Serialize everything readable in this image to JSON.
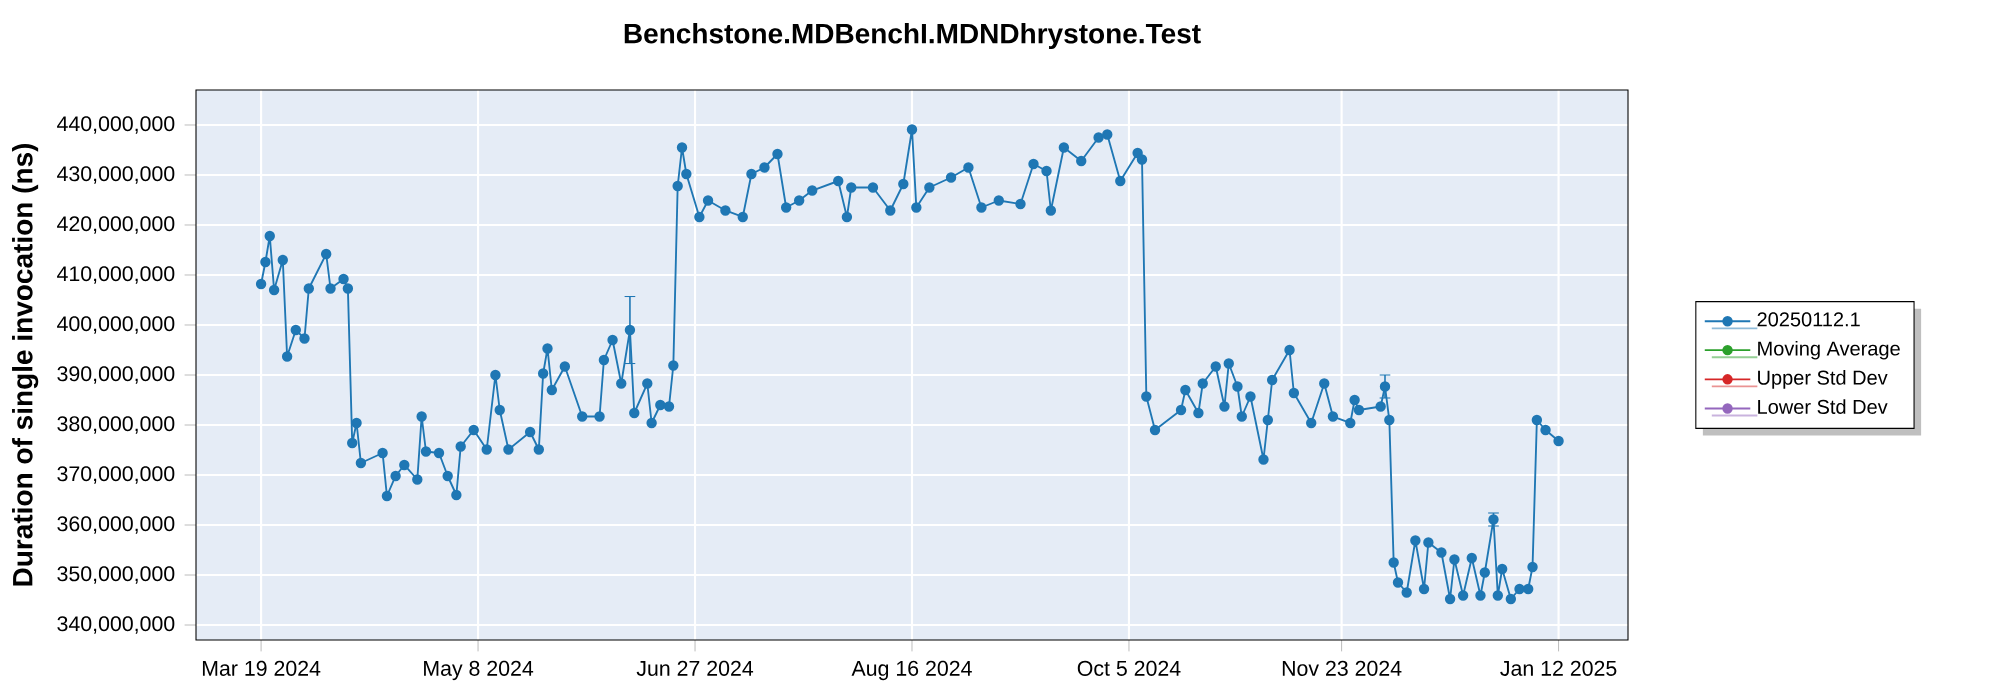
{
  "chart_data": {
    "type": "line",
    "title": "Benchstone.MDBenchI.MDNDhrystone.Test",
    "ylabel": "Duration of single invocation (ns)",
    "x": [
      "2024-03-19",
      "2024-03-20",
      "2024-03-21",
      "2024-03-22",
      "2024-03-24",
      "2024-03-25",
      "2024-03-27",
      "2024-03-29",
      "2024-03-30",
      "2024-04-03",
      "2024-04-04",
      "2024-04-07",
      "2024-04-08",
      "2024-04-09",
      "2024-04-10",
      "2024-04-11",
      "2024-04-16",
      "2024-04-17",
      "2024-04-19",
      "2024-04-21",
      "2024-04-24",
      "2024-04-25",
      "2024-04-26",
      "2024-04-29",
      "2024-05-01",
      "2024-05-03",
      "2024-05-04",
      "2024-05-07",
      "2024-05-10",
      "2024-05-12",
      "2024-05-13",
      "2024-05-15",
      "2024-05-20",
      "2024-05-22",
      "2024-05-23",
      "2024-05-24",
      "2024-05-25",
      "2024-05-28",
      "2024-06-01",
      "2024-06-05",
      "2024-06-06",
      "2024-06-08",
      "2024-06-10",
      "2024-06-12",
      "2024-06-13",
      "2024-06-16",
      "2024-06-17",
      "2024-06-19",
      "2024-06-21",
      "2024-06-22",
      "2024-06-23",
      "2024-06-24",
      "2024-06-25",
      "2024-06-28",
      "2024-06-30",
      "2024-07-04",
      "2024-07-08",
      "2024-07-10",
      "2024-07-13",
      "2024-07-16",
      "2024-07-18",
      "2024-07-21",
      "2024-07-24",
      "2024-07-30",
      "2024-08-01",
      "2024-08-02",
      "2024-08-07",
      "2024-08-11",
      "2024-08-14",
      "2024-08-16",
      "2024-08-17",
      "2024-08-20",
      "2024-08-25",
      "2024-08-29",
      "2024-09-01",
      "2024-09-05",
      "2024-09-10",
      "2024-09-13",
      "2024-09-16",
      "2024-09-17",
      "2024-09-20",
      "2024-09-24",
      "2024-09-28",
      "2024-09-30",
      "2024-10-03",
      "2024-10-07",
      "2024-10-08",
      "2024-10-09",
      "2024-10-11",
      "2024-10-17",
      "2024-10-18",
      "2024-10-21",
      "2024-10-22",
      "2024-10-25",
      "2024-10-27",
      "2024-10-28",
      "2024-10-30",
      "2024-10-31",
      "2024-11-02",
      "2024-11-05",
      "2024-11-06",
      "2024-11-07",
      "2024-11-11",
      "2024-11-12",
      "2024-11-16",
      "2024-11-19",
      "2024-11-21",
      "2024-11-25",
      "2024-11-26",
      "2024-11-27",
      "2024-12-02",
      "2024-12-03",
      "2024-12-04",
      "2024-12-05",
      "2024-12-06",
      "2024-12-08",
      "2024-12-10",
      "2024-12-12",
      "2024-12-13",
      "2024-12-16",
      "2024-12-18",
      "2024-12-19",
      "2024-12-21",
      "2024-12-23",
      "2024-12-25",
      "2024-12-26",
      "2024-12-28",
      "2024-12-29",
      "2024-12-30",
      "2025-01-01",
      "2025-01-03",
      "2025-01-05",
      "2025-01-06",
      "2025-01-07",
      "2025-01-09",
      "2025-01-12"
    ],
    "series": [
      {
        "name": "20250112.1",
        "color": "#1f77b4",
        "values": [
          408200000,
          412600000,
          417800000,
          407000000,
          413000000,
          393700000,
          399000000,
          397300000,
          407300000,
          414200000,
          407300000,
          409200000,
          407300000,
          376400000,
          380400000,
          372400000,
          374400000,
          365800000,
          369800000,
          372000000,
          369100000,
          381700000,
          374700000,
          374400000,
          369800000,
          366000000,
          375700000,
          379000000,
          375100000,
          390000000,
          383000000,
          375100000,
          378600000,
          375100000,
          390300000,
          395300000,
          387000000,
          391700000,
          381700000,
          381700000,
          393000000,
          397000000,
          388300000,
          399000000,
          382400000,
          388300000,
          380400000,
          384000000,
          383700000,
          391900000,
          427800000,
          435500000,
          430200000,
          421600000,
          424900000,
          422900000,
          421600000,
          430200000,
          431500000,
          434200000,
          423500000,
          424900000,
          426900000,
          428800000,
          421600000,
          427500000,
          427500000,
          422900000,
          428200000,
          439100000,
          423500000,
          427500000,
          429500000,
          431500000,
          423500000,
          424900000,
          424200000,
          432200000,
          430800000,
          422900000,
          435500000,
          432800000,
          437500000,
          438100000,
          428800000,
          434400000,
          433100000,
          385700000,
          379000000,
          383000000,
          387000000,
          382400000,
          388300000,
          391700000,
          383700000,
          392300000,
          387700000,
          381700000,
          385700000,
          373100000,
          381000000,
          389000000,
          395000000,
          386400000,
          380400000,
          388300000,
          381700000,
          380400000,
          385000000,
          383000000,
          383700000,
          387700000,
          381000000,
          352500000,
          348500000,
          346500000,
          356900000,
          347200000,
          356500000,
          354500000,
          345200000,
          353100000,
          345900000,
          353400000,
          345900000,
          350500000,
          361100000,
          345900000,
          351200000,
          345200000,
          347200000,
          347200000,
          351600000,
          381000000,
          379000000,
          376800000
        ],
        "errors": [
          null,
          null,
          null,
          null,
          null,
          null,
          null,
          null,
          null,
          null,
          null,
          null,
          null,
          null,
          null,
          null,
          null,
          null,
          null,
          null,
          null,
          null,
          null,
          null,
          null,
          null,
          null,
          null,
          null,
          null,
          null,
          null,
          null,
          null,
          null,
          null,
          null,
          null,
          null,
          null,
          null,
          null,
          null,
          6700000,
          null,
          null,
          null,
          null,
          null,
          null,
          null,
          null,
          null,
          null,
          null,
          null,
          null,
          null,
          null,
          null,
          null,
          null,
          null,
          null,
          null,
          null,
          null,
          null,
          null,
          null,
          null,
          null,
          null,
          null,
          null,
          null,
          null,
          null,
          null,
          null,
          null,
          null,
          null,
          null,
          null,
          null,
          null,
          null,
          null,
          null,
          null,
          null,
          null,
          null,
          null,
          null,
          null,
          null,
          null,
          null,
          null,
          null,
          null,
          null,
          null,
          null,
          null,
          null,
          null,
          null,
          null,
          2300000,
          null,
          null,
          null,
          null,
          null,
          null,
          null,
          null,
          null,
          null,
          null,
          null,
          null,
          null,
          1300000,
          null,
          null,
          null,
          null,
          null,
          null,
          null,
          null,
          null
        ]
      },
      {
        "name": "Moving Average",
        "color": "#2ca02c",
        "values": [
          null,
          null,
          null,
          null,
          null,
          null,
          null,
          null,
          null,
          null,
          null,
          null,
          null,
          null,
          null,
          null,
          null,
          null,
          null,
          null,
          null,
          null,
          null,
          null,
          null,
          null,
          null,
          null,
          null,
          null,
          null,
          null,
          null,
          null,
          null,
          null,
          null,
          null,
          null,
          null,
          null,
          null,
          null,
          null,
          null,
          null,
          null,
          null,
          null,
          null,
          null,
          null,
          null,
          null,
          null,
          null,
          null,
          null,
          null,
          null,
          null,
          null,
          null,
          null,
          null,
          null,
          null,
          null,
          null,
          null,
          null,
          null,
          null,
          null,
          null,
          null,
          null,
          null,
          null,
          null,
          null,
          null,
          null,
          null,
          null,
          null,
          null,
          null,
          null,
          null,
          null,
          null,
          null,
          null,
          null,
          null,
          null,
          null,
          null,
          null,
          null,
          null,
          null,
          null,
          null,
          null,
          null,
          null,
          null,
          null,
          null,
          null,
          null,
          null,
          null,
          null,
          null,
          null,
          null,
          null,
          null,
          null,
          null,
          null,
          null,
          null,
          null,
          null,
          null,
          null,
          null,
          null,
          null,
          null,
          null,
          null
        ]
      },
      {
        "name": "Upper Std Dev",
        "color": "#d62728",
        "values": [
          null,
          null,
          null,
          null,
          null,
          null,
          null,
          null,
          null,
          null,
          null,
          null,
          null,
          null,
          null,
          null,
          null,
          null,
          null,
          null,
          null,
          null,
          null,
          null,
          null,
          null,
          null,
          null,
          null,
          null,
          null,
          null,
          null,
          null,
          null,
          null,
          null,
          null,
          null,
          null,
          null,
          null,
          null,
          null,
          null,
          null,
          null,
          null,
          null,
          null,
          null,
          null,
          null,
          null,
          null,
          null,
          null,
          null,
          null,
          null,
          null,
          null,
          null,
          null,
          null,
          null,
          null,
          null,
          null,
          null,
          null,
          null,
          null,
          null,
          null,
          null,
          null,
          null,
          null,
          null,
          null,
          null,
          null,
          null,
          null,
          null,
          null,
          null,
          null,
          null,
          null,
          null,
          null,
          null,
          null,
          null,
          null,
          null,
          null,
          null,
          null,
          null,
          null,
          null,
          null,
          null,
          null,
          null,
          null,
          null,
          null,
          null,
          null,
          null,
          null,
          null,
          null,
          null,
          null,
          null,
          null,
          null,
          null,
          null,
          null,
          null,
          null,
          null,
          null,
          null,
          null,
          null,
          null,
          null,
          null,
          null
        ]
      },
      {
        "name": "Lower Std Dev",
        "color": "#9467bd",
        "values": [
          null,
          null,
          null,
          null,
          null,
          null,
          null,
          null,
          null,
          null,
          null,
          null,
          null,
          null,
          null,
          null,
          null,
          null,
          null,
          null,
          null,
          null,
          null,
          null,
          null,
          null,
          null,
          null,
          null,
          null,
          null,
          null,
          null,
          null,
          null,
          null,
          null,
          null,
          null,
          null,
          null,
          null,
          null,
          null,
          null,
          null,
          null,
          null,
          null,
          null,
          null,
          null,
          null,
          null,
          null,
          null,
          null,
          null,
          null,
          null,
          null,
          null,
          null,
          null,
          null,
          null,
          null,
          null,
          null,
          null,
          null,
          null,
          null,
          null,
          null,
          null,
          null,
          null,
          null,
          null,
          null,
          null,
          null,
          null,
          null,
          null,
          null,
          null,
          null,
          null,
          null,
          null,
          null,
          null,
          null,
          null,
          null,
          null,
          null,
          null,
          null,
          null,
          null,
          null,
          null,
          null,
          null,
          null,
          null,
          null,
          null,
          null,
          null,
          null,
          null,
          null,
          null,
          null,
          null,
          null,
          null,
          null,
          null,
          null,
          null,
          null,
          null,
          null,
          null,
          null,
          null,
          null,
          null,
          null,
          null,
          null
        ]
      }
    ],
    "xlim": [
      "2024-03-04",
      "2025-01-28"
    ],
    "xticks": [
      {
        "value": "2024-03-19",
        "label": "Mar 19 2024"
      },
      {
        "value": "2024-05-08",
        "label": "May 8 2024"
      },
      {
        "value": "2024-06-27",
        "label": "Jun 27 2024"
      },
      {
        "value": "2024-08-16",
        "label": "Aug 16 2024"
      },
      {
        "value": "2024-10-05",
        "label": "Oct 5 2024"
      },
      {
        "value": "2024-11-23",
        "label": "Nov 23 2024"
      },
      {
        "value": "2025-01-12",
        "label": "Jan 12 2025"
      }
    ],
    "ylim": [
      337000000,
      447000000
    ],
    "yticks": [
      {
        "value": 340000000,
        "label": "340,000,000"
      },
      {
        "value": 350000000,
        "label": "350,000,000"
      },
      {
        "value": 360000000,
        "label": "360,000,000"
      },
      {
        "value": 370000000,
        "label": "370,000,000"
      },
      {
        "value": 380000000,
        "label": "380,000,000"
      },
      {
        "value": 390000000,
        "label": "390,000,000"
      },
      {
        "value": 400000000,
        "label": "400,000,000"
      },
      {
        "value": 410000000,
        "label": "410,000,000"
      },
      {
        "value": 420000000,
        "label": "420,000,000"
      },
      {
        "value": 430000000,
        "label": "430,000,000"
      },
      {
        "value": 440000000,
        "label": "440,000,000"
      }
    ],
    "grid": true,
    "legend": "right",
    "marker": "circle",
    "line_style": "solid"
  }
}
